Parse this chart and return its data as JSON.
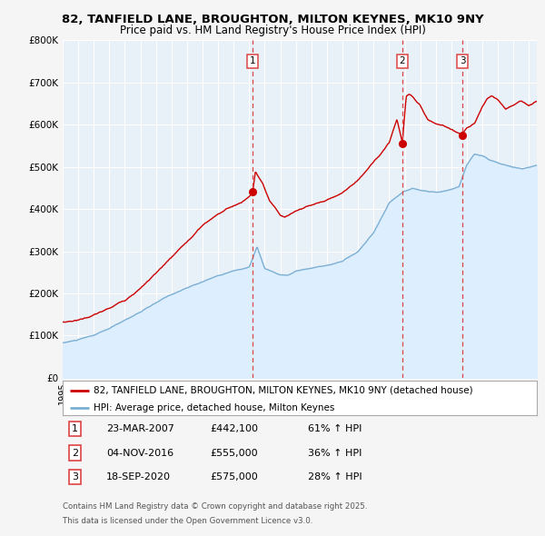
{
  "title_line1": "82, TANFIELD LANE, BROUGHTON, MILTON KEYNES, MK10 9NY",
  "title_line2": "Price paid vs. HM Land Registry's House Price Index (HPI)",
  "legend_line1": "82, TANFIELD LANE, BROUGHTON, MILTON KEYNES, MK10 9NY (detached house)",
  "legend_line2": "HPI: Average price, detached house, Milton Keynes",
  "transactions": [
    {
      "num": 1,
      "date": "23-MAR-2007",
      "price": "£442,100",
      "hpi_change": "61% ↑ HPI"
    },
    {
      "num": 2,
      "date": "04-NOV-2016",
      "price": "£555,000",
      "hpi_change": "36% ↑ HPI"
    },
    {
      "num": 3,
      "date": "18-SEP-2020",
      "price": "£575,000",
      "hpi_change": "28% ↑ HPI"
    }
  ],
  "transaction_dates_decimal": [
    2007.23,
    2016.85,
    2020.72
  ],
  "transaction_prices": [
    442100,
    555000,
    575000
  ],
  "footnote_line1": "Contains HM Land Registry data © Crown copyright and database right 2025.",
  "footnote_line2": "This data is licensed under the Open Government Licence v3.0.",
  "red_line_color": "#cc0000",
  "blue_line_color": "#7bafd4",
  "blue_fill_color": "#ddeeff",
  "chart_bg_color": "#e8f0f8",
  "outer_bg_color": "#f5f5f5",
  "grid_color": "#ffffff",
  "dashed_line_color": "#dd4444",
  "ylim": [
    0,
    800000
  ],
  "xlim_start": 1995.0,
  "xlim_end": 2025.5,
  "yticks": [
    0,
    100000,
    200000,
    300000,
    400000,
    500000,
    600000,
    700000,
    800000
  ],
  "ytick_labels": [
    "£0",
    "£100K",
    "£200K",
    "£300K",
    "£400K",
    "£500K",
    "£600K",
    "£700K",
    "£800K"
  ]
}
